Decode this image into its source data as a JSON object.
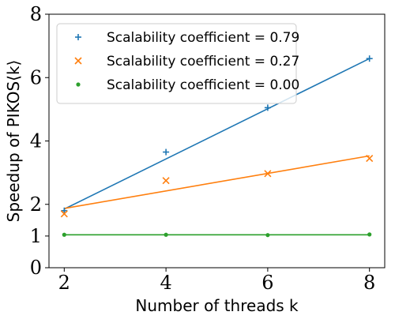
{
  "chart_data": {
    "type": "scatter",
    "xlabel": "Number of threads k",
    "ylabel": "Speedup of PIKOS⟨k⟩",
    "xlim": [
      1.7,
      8.3
    ],
    "ylim": [
      0,
      8
    ],
    "xticks": [
      2,
      4,
      6,
      8
    ],
    "yticks": [
      0,
      1,
      2,
      4,
      6,
      8
    ],
    "grid": false,
    "legend_position": "top-left",
    "series": [
      {
        "name": "Scalability coefficient = 0.79",
        "marker": "plus",
        "color": "#1f77b4",
        "x": [
          2,
          4,
          6,
          8
        ],
        "y": [
          1.8,
          3.65,
          5.05,
          6.6
        ],
        "fit": [
          [
            2,
            1.85
          ],
          [
            8,
            6.6
          ]
        ]
      },
      {
        "name": "Scalability coefficient = 0.27",
        "marker": "cross",
        "color": "#ff7f0e",
        "x": [
          2,
          4,
          6,
          8
        ],
        "y": [
          1.7,
          2.75,
          2.97,
          3.45
        ],
        "fit": [
          [
            2,
            1.87
          ],
          [
            8,
            3.53
          ]
        ]
      },
      {
        "name": "Scalability coefficient = 0.00",
        "marker": "dot",
        "color": "#2ca02c",
        "x": [
          2,
          4,
          6,
          8
        ],
        "y": [
          1.04,
          1.04,
          1.03,
          1.05
        ],
        "fit": [
          [
            2,
            1.04
          ],
          [
            8,
            1.04
          ]
        ]
      }
    ]
  }
}
